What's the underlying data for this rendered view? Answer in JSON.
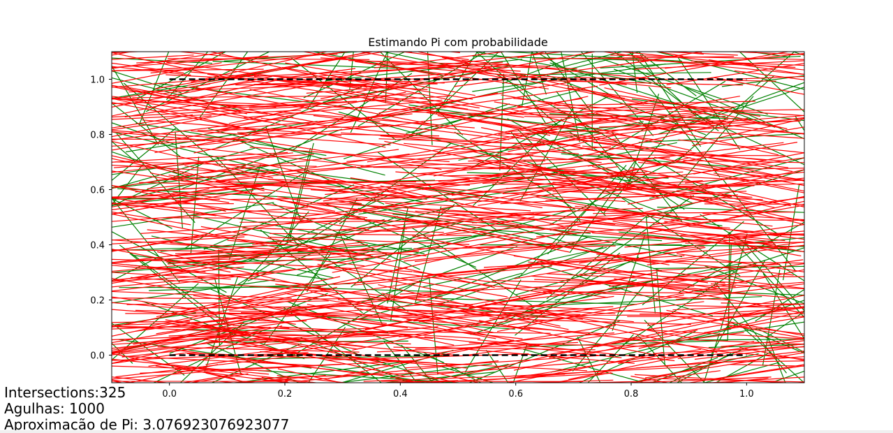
{
  "chart_data": {
    "type": "line",
    "title": "Estimando Pi com probabilidade",
    "xlabel": "",
    "ylabel": "",
    "xlim": [
      -0.1,
      1.1
    ],
    "ylim": [
      -0.1,
      1.1
    ],
    "x_ticks": [
      "0.0",
      "0.2",
      "0.4",
      "0.6",
      "0.8",
      "1.0"
    ],
    "y_ticks": [
      "0.0",
      "0.2",
      "0.4",
      "0.6",
      "0.8",
      "1.0"
    ],
    "grid": false,
    "reference_lines": [
      {
        "y": 1.0,
        "x": [
          0.0,
          1.0
        ],
        "style": "dashed",
        "color": "#000000"
      },
      {
        "y": 0.0,
        "x": [
          0.0,
          1.0
        ],
        "style": "dashed",
        "color": "#000000"
      }
    ],
    "needle_length": 0.35,
    "needle_count": 1000,
    "intersections": 325,
    "colors": {
      "crossing": "#008000",
      "not_crossing": "#ff0000",
      "reference": "#000000"
    }
  },
  "stats": {
    "intersections": "Intersections:325",
    "needles": "Agulhas: 1000",
    "pi_estimate": "Aproximacão de Pi: 3.076923076923077"
  }
}
